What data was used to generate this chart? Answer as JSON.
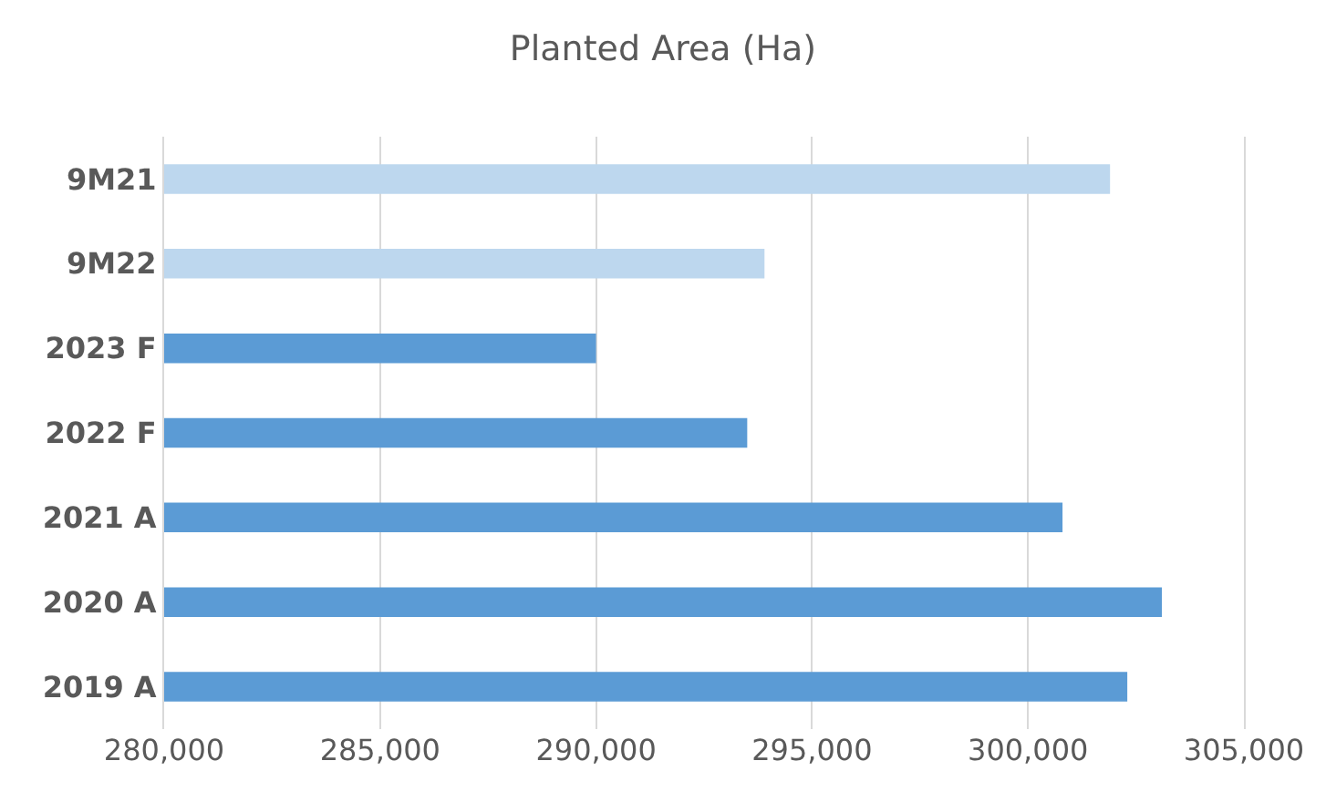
{
  "chart_data": {
    "type": "bar",
    "orientation": "horizontal",
    "title": "Planted Area (Ha)",
    "categories": [
      "9M21",
      "9M22",
      "2023 F",
      "2022 F",
      "2021 A",
      "2020 A",
      "2019 A"
    ],
    "values": [
      301900,
      293900,
      290000,
      293500,
      300800,
      303100,
      302300
    ],
    "colors": [
      "#bdd7ee",
      "#bdd7ee",
      "#5b9bd5",
      "#5b9bd5",
      "#5b9bd5",
      "#5b9bd5",
      "#5b9bd5"
    ],
    "xlim": [
      280000,
      305000
    ],
    "xticks": [
      {
        "value": 280000,
        "label": "280,000"
      },
      {
        "value": 285000,
        "label": "285,000"
      },
      {
        "value": 290000,
        "label": "290,000"
      },
      {
        "value": 295000,
        "label": "295,000"
      },
      {
        "value": 300000,
        "label": "300,000"
      },
      {
        "value": 305000,
        "label": "305,000"
      }
    ],
    "grid": "x"
  }
}
